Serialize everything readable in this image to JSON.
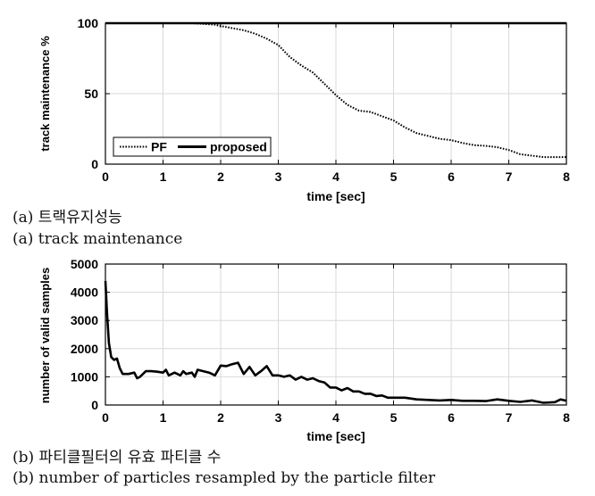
{
  "captions": {
    "a_korean": "(a) 트랙유지성능",
    "a_english": "(a) track maintenance",
    "b_korean": "(b) 파티클필터의 유효 파티클 수",
    "b_english": "(b) number of particles resampled by the particle filter"
  },
  "chart_data": [
    {
      "type": "line",
      "xlabel": "time [sec]",
      "ylabel": "track maintenance %",
      "xlim": [
        0,
        8
      ],
      "ylim": [
        0,
        100
      ],
      "xticks": [
        0,
        1,
        2,
        3,
        4,
        5,
        6,
        7,
        8
      ],
      "yticks": [
        0,
        50,
        100
      ],
      "grid": true,
      "legend_position": "bottom-left",
      "series": [
        {
          "name": "PF",
          "style": "dotted",
          "color": "#000000",
          "x": [
            0,
            1.5,
            1.7,
            1.9,
            2.0,
            2.2,
            2.4,
            2.6,
            2.8,
            3.0,
            3.2,
            3.4,
            3.6,
            3.8,
            4.0,
            4.2,
            4.4,
            4.6,
            4.8,
            5.0,
            5.2,
            5.4,
            5.6,
            5.8,
            6.0,
            6.2,
            6.4,
            6.6,
            6.8,
            7.0,
            7.2,
            7.4,
            7.6,
            7.8,
            8.0
          ],
          "y": [
            100,
            100,
            99.5,
            99,
            98,
            96.5,
            95,
            92.5,
            89,
            84.5,
            76,
            70,
            65,
            57,
            49,
            42,
            38,
            37,
            34,
            31,
            26,
            22,
            20,
            18,
            17,
            15,
            13.5,
            13,
            12,
            10,
            7,
            6,
            5,
            5,
            5
          ]
        },
        {
          "name": "proposed",
          "style": "solid",
          "color": "#000000",
          "x": [
            0,
            8
          ],
          "y": [
            100,
            100
          ]
        }
      ]
    },
    {
      "type": "line",
      "xlabel": "time [sec]",
      "ylabel": "number of valid samples",
      "xlim": [
        0,
        8
      ],
      "ylim": [
        0,
        5000
      ],
      "xticks": [
        0,
        1,
        2,
        3,
        4,
        5,
        6,
        7,
        8
      ],
      "yticks": [
        0,
        1000,
        2000,
        3000,
        4000,
        5000
      ],
      "grid": true,
      "series": [
        {
          "color": "#000000",
          "style": "solid",
          "x": [
            0,
            0.03,
            0.06,
            0.1,
            0.15,
            0.2,
            0.25,
            0.3,
            0.4,
            0.5,
            0.55,
            0.6,
            0.7,
            0.8,
            0.9,
            1.0,
            1.05,
            1.1,
            1.2,
            1.3,
            1.35,
            1.4,
            1.5,
            1.55,
            1.6,
            1.7,
            1.8,
            1.9,
            2.0,
            2.1,
            2.2,
            2.3,
            2.4,
            2.5,
            2.6,
            2.7,
            2.8,
            2.9,
            3.0,
            3.1,
            3.2,
            3.3,
            3.4,
            3.5,
            3.6,
            3.7,
            3.8,
            3.9,
            4.0,
            4.1,
            4.2,
            4.3,
            4.4,
            4.5,
            4.6,
            4.7,
            4.8,
            4.9,
            5.0,
            5.2,
            5.4,
            5.6,
            5.8,
            6.0,
            6.2,
            6.4,
            6.6,
            6.8,
            7.0,
            7.2,
            7.4,
            7.6,
            7.8,
            7.9,
            8.0
          ],
          "y": [
            4400,
            3200,
            2200,
            1700,
            1600,
            1650,
            1300,
            1100,
            1100,
            1150,
            950,
            1000,
            1200,
            1200,
            1180,
            1150,
            1250,
            1050,
            1150,
            1050,
            1200,
            1100,
            1150,
            1000,
            1250,
            1200,
            1150,
            1050,
            1400,
            1380,
            1450,
            1500,
            1100,
            1350,
            1050,
            1200,
            1380,
            1050,
            1050,
            1000,
            1050,
            900,
            1000,
            900,
            950,
            850,
            800,
            620,
            620,
            520,
            600,
            480,
            480,
            400,
            400,
            320,
            340,
            260,
            260,
            260,
            200,
            180,
            160,
            180,
            150,
            150,
            140,
            200,
            150,
            110,
            160,
            80,
            100,
            200,
            150
          ]
        }
      ]
    }
  ]
}
